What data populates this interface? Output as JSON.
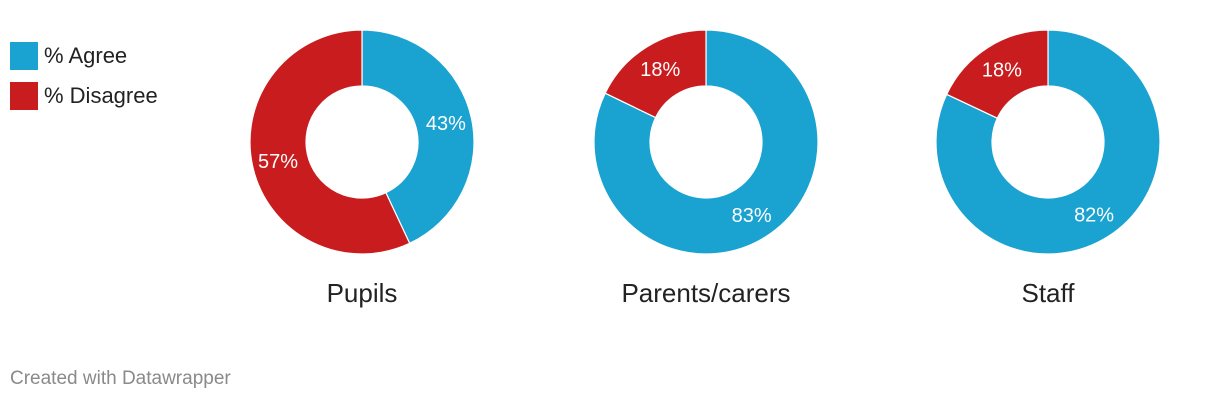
{
  "chart_data": {
    "type": "pie",
    "variant": "donut",
    "legend": [
      {
        "label": "% Agree",
        "color": "#1aa2d0"
      },
      {
        "label": "% Disagree",
        "color": "#c91c1e"
      }
    ],
    "charts": [
      {
        "title": "Pupils",
        "agree": 43,
        "disagree": 57,
        "agree_label": "43%",
        "disagree_label": "57%"
      },
      {
        "title": "Parents/carers",
        "agree": 83,
        "disagree": 18,
        "agree_label": "83%",
        "disagree_label": "18%"
      },
      {
        "title": "Staff",
        "agree": 82,
        "disagree": 18,
        "agree_label": "82%",
        "disagree_label": "18%"
      }
    ]
  },
  "footer": {
    "credit": "Created with Datawrapper"
  }
}
